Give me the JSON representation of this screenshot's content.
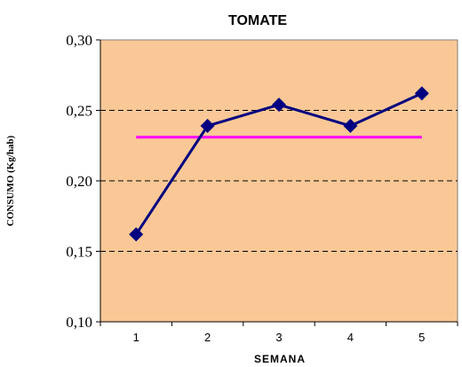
{
  "chart_data": {
    "type": "line",
    "title": "TOMATE",
    "xlabel": "SEMANA",
    "ylabel": "CONSUMO (Kg/hab)",
    "categories": [
      "1",
      "2",
      "3",
      "4",
      "5"
    ],
    "y_tick_labels": [
      "0,10",
      "0,15",
      "0,20",
      "0,25",
      "0,30"
    ],
    "y_ticks": [
      0.1,
      0.15,
      0.2,
      0.25,
      0.3
    ],
    "ylim": [
      0.1,
      0.3
    ],
    "series": [
      {
        "values": [
          0.162,
          0.239,
          0.254,
          0.239,
          0.262
        ]
      }
    ],
    "reference_line": {
      "value": 0.231
    },
    "grid": "horizontal dashed",
    "colors": {
      "plot_background": "#FAC896",
      "series": "#000080",
      "reference_line": "#FF00FF",
      "grid": "#000000"
    }
  }
}
